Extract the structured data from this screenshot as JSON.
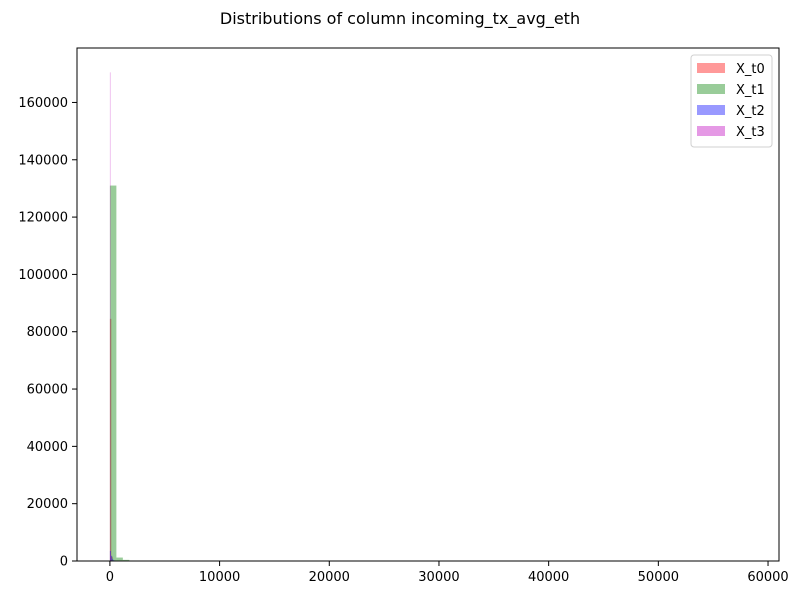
{
  "chart_data": {
    "type": "histogram",
    "title": "Distributions of column incoming_tx_avg_eth",
    "xlabel": "",
    "ylabel": "",
    "xlim": [
      -3000,
      61000
    ],
    "ylim": [
      0,
      179000
    ],
    "x_ticks": [
      0,
      10000,
      20000,
      30000,
      40000,
      50000,
      60000
    ],
    "y_ticks": [
      0,
      20000,
      40000,
      60000,
      80000,
      100000,
      120000,
      140000,
      160000
    ],
    "grid": false,
    "legend_position": "top-right",
    "series": [
      {
        "name": "X_t0",
        "color": "#ff0000",
        "alpha": 0.4,
        "bins": [
          {
            "x0": 0,
            "x1": 130,
            "count": 84500
          },
          {
            "x0": 130,
            "x1": 260,
            "count": 1500
          }
        ]
      },
      {
        "name": "X_t1",
        "color": "#008000",
        "alpha": 0.4,
        "bins": [
          {
            "x0": 0,
            "x1": 590,
            "count": 131000
          },
          {
            "x0": 590,
            "x1": 1180,
            "count": 1200
          },
          {
            "x0": 1180,
            "x1": 1770,
            "count": 400
          }
        ]
      },
      {
        "name": "X_t2",
        "color": "#0000ff",
        "alpha": 0.4,
        "bins": [
          {
            "x0": 0,
            "x1": 100,
            "count": 3500
          },
          {
            "x0": 100,
            "x1": 200,
            "count": 1800
          },
          {
            "x0": 200,
            "x1": 300,
            "count": 800
          },
          {
            "x0": 300,
            "x1": 400,
            "count": 300
          }
        ]
      },
      {
        "name": "X_t3",
        "color": "#bf00bf",
        "alpha": 0.4,
        "bins": [
          {
            "x0": 0,
            "x1": 40,
            "count": 170500
          },
          {
            "x0": 40,
            "x1": 80,
            "count": 2000
          }
        ]
      }
    ]
  }
}
